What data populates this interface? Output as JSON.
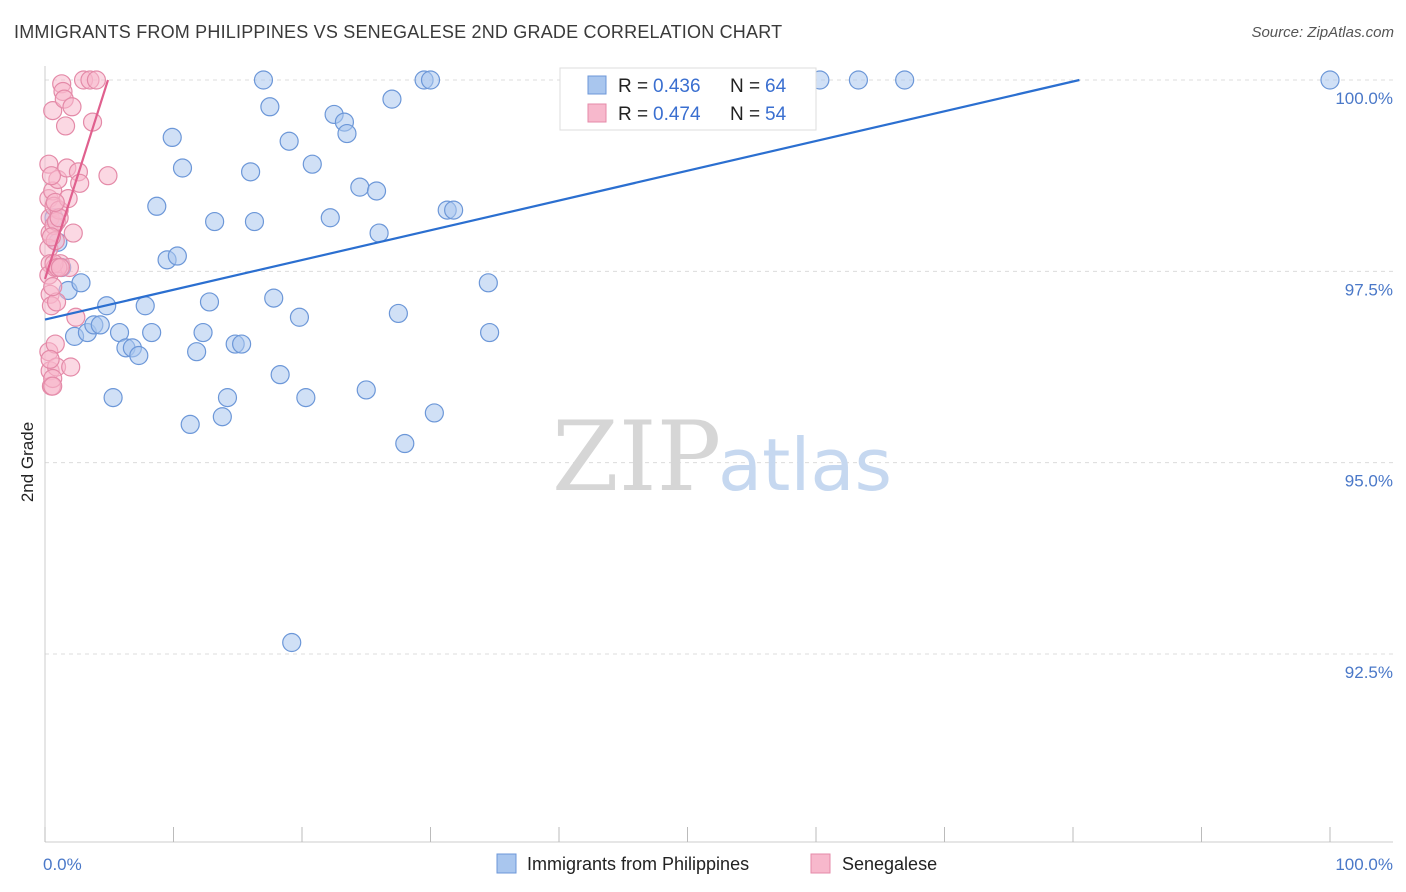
{
  "header": {
    "title": "IMMIGRANTS FROM PHILIPPINES VS SENEGALESE 2ND GRADE CORRELATION CHART",
    "source": "Source: ZipAtlas.com"
  },
  "watermark": {
    "zip": "ZIP",
    "atlas": "atlas"
  },
  "legend": {
    "r_label": "R =",
    "n_label": "N =",
    "rows": [
      {
        "r": "0.436",
        "n": "64",
        "color": "#a9c6ee",
        "stroke": "#6c97d8"
      },
      {
        "r": "0.474",
        "n": "54",
        "color": "#f7b8cc",
        "stroke": "#e48aa8"
      }
    ]
  },
  "bottom_legend": [
    {
      "label": "Immigrants from Philippines",
      "color": "#a9c6ee",
      "stroke": "#6c97d8"
    },
    {
      "label": "Senegalese",
      "color": "#f7b8cc",
      "stroke": "#e48aa8"
    }
  ],
  "chart_data": {
    "type": "scatter",
    "ylabel": "2nd Grade",
    "xlim": [
      0,
      100
    ],
    "ylim": [
      90.5,
      100.4
    ],
    "y_ticks": [
      {
        "value": 100.0,
        "label": "100.0%"
      },
      {
        "value": 97.5,
        "label": "97.5%"
      },
      {
        "value": 95.0,
        "label": "95.0%"
      },
      {
        "value": 92.5,
        "label": "92.5%"
      }
    ],
    "x_tick_labels": [
      {
        "value": 0,
        "label": "0.0%"
      },
      {
        "value": 100,
        "label": "100.0%"
      }
    ],
    "x_minor_ticks": [
      0,
      10,
      20,
      30,
      40,
      50,
      60,
      70,
      80,
      90,
      100
    ],
    "grid": true,
    "series": [
      {
        "name": "Immigrants from Philippines",
        "color": "#a9c6ee",
        "stroke": "#6c97d8",
        "line_color": "#2b6fd0",
        "trend": {
          "x": [
            0,
            80.5
          ],
          "y": [
            96.87,
            100.0
          ]
        },
        "points": [
          {
            "x": 1.0,
            "y": 97.88
          },
          {
            "x": 1.3,
            "y": 97.55
          },
          {
            "x": 1.8,
            "y": 97.25
          },
          {
            "x": 2.3,
            "y": 96.65
          },
          {
            "x": 2.8,
            "y": 97.35
          },
          {
            "x": 3.3,
            "y": 96.7
          },
          {
            "x": 3.8,
            "y": 96.8
          },
          {
            "x": 4.3,
            "y": 96.8
          },
          {
            "x": 4.8,
            "y": 97.05
          },
          {
            "x": 5.3,
            "y": 95.85
          },
          {
            "x": 5.8,
            "y": 96.7
          },
          {
            "x": 6.3,
            "y": 96.5
          },
          {
            "x": 6.8,
            "y": 96.5
          },
          {
            "x": 7.3,
            "y": 96.4
          },
          {
            "x": 7.8,
            "y": 97.05
          },
          {
            "x": 8.3,
            "y": 96.7
          },
          {
            "x": 8.7,
            "y": 98.35
          },
          {
            "x": 9.5,
            "y": 97.65
          },
          {
            "x": 9.9,
            "y": 99.25
          },
          {
            "x": 10.3,
            "y": 97.7
          },
          {
            "x": 10.7,
            "y": 98.85
          },
          {
            "x": 11.3,
            "y": 95.5
          },
          {
            "x": 11.8,
            "y": 96.45
          },
          {
            "x": 12.3,
            "y": 96.7
          },
          {
            "x": 12.8,
            "y": 97.1
          },
          {
            "x": 13.2,
            "y": 98.15
          },
          {
            "x": 13.8,
            "y": 95.6
          },
          {
            "x": 14.2,
            "y": 95.85
          },
          {
            "x": 14.8,
            "y": 96.55
          },
          {
            "x": 15.3,
            "y": 96.55
          },
          {
            "x": 16.0,
            "y": 98.8
          },
          {
            "x": 16.3,
            "y": 98.15
          },
          {
            "x": 17.0,
            "y": 100.0
          },
          {
            "x": 17.5,
            "y": 99.65
          },
          {
            "x": 17.8,
            "y": 97.15
          },
          {
            "x": 18.3,
            "y": 96.15
          },
          {
            "x": 19.0,
            "y": 99.2
          },
          {
            "x": 19.2,
            "y": 92.65
          },
          {
            "x": 19.8,
            "y": 96.9
          },
          {
            "x": 20.3,
            "y": 95.85
          },
          {
            "x": 20.8,
            "y": 98.9
          },
          {
            "x": 22.2,
            "y": 98.2
          },
          {
            "x": 22.5,
            "y": 99.55
          },
          {
            "x": 23.3,
            "y": 99.45
          },
          {
            "x": 23.5,
            "y": 99.3
          },
          {
            "x": 24.5,
            "y": 98.6
          },
          {
            "x": 25.0,
            "y": 95.95
          },
          {
            "x": 25.8,
            "y": 98.55
          },
          {
            "x": 26.0,
            "y": 98.0
          },
          {
            "x": 27.0,
            "y": 99.75
          },
          {
            "x": 27.5,
            "y": 96.95
          },
          {
            "x": 28.0,
            "y": 95.25
          },
          {
            "x": 29.5,
            "y": 100.0
          },
          {
            "x": 30.0,
            "y": 100.0
          },
          {
            "x": 30.3,
            "y": 95.65
          },
          {
            "x": 31.3,
            "y": 98.3
          },
          {
            "x": 31.8,
            "y": 98.3
          },
          {
            "x": 34.5,
            "y": 97.35
          },
          {
            "x": 34.6,
            "y": 96.7
          },
          {
            "x": 60.3,
            "y": 100.0
          },
          {
            "x": 63.3,
            "y": 100.0
          },
          {
            "x": 66.9,
            "y": 100.0
          },
          {
            "x": 100.0,
            "y": 100.0
          },
          {
            "x": 0.7,
            "y": 98.2
          }
        ]
      },
      {
        "name": "Senegalese",
        "color": "#f7b8cc",
        "stroke": "#e48aa8",
        "line_color": "#e0608e",
        "trend": {
          "x": [
            0,
            4.9
          ],
          "y": [
            97.4,
            100.0
          ]
        },
        "points": [
          {
            "x": 0.3,
            "y": 98.9
          },
          {
            "x": 0.3,
            "y": 98.45
          },
          {
            "x": 0.4,
            "y": 98.2
          },
          {
            "x": 0.4,
            "y": 98.0
          },
          {
            "x": 0.3,
            "y": 97.8
          },
          {
            "x": 0.4,
            "y": 97.6
          },
          {
            "x": 0.3,
            "y": 97.45
          },
          {
            "x": 0.4,
            "y": 97.2
          },
          {
            "x": 0.5,
            "y": 97.05
          },
          {
            "x": 0.3,
            "y": 96.45
          },
          {
            "x": 0.4,
            "y": 96.2
          },
          {
            "x": 0.5,
            "y": 96.0
          },
          {
            "x": 0.6,
            "y": 99.6
          },
          {
            "x": 0.6,
            "y": 98.55
          },
          {
            "x": 0.7,
            "y": 98.35
          },
          {
            "x": 0.7,
            "y": 98.1
          },
          {
            "x": 0.8,
            "y": 97.9
          },
          {
            "x": 0.8,
            "y": 97.55
          },
          {
            "x": 0.9,
            "y": 97.1
          },
          {
            "x": 0.8,
            "y": 96.55
          },
          {
            "x": 0.9,
            "y": 96.25
          },
          {
            "x": 0.6,
            "y": 96.1
          },
          {
            "x": 1.0,
            "y": 98.7
          },
          {
            "x": 1.1,
            "y": 98.3
          },
          {
            "x": 1.2,
            "y": 97.6
          },
          {
            "x": 1.3,
            "y": 99.95
          },
          {
            "x": 1.4,
            "y": 99.85
          },
          {
            "x": 1.5,
            "y": 99.75
          },
          {
            "x": 1.6,
            "y": 99.4
          },
          {
            "x": 1.7,
            "y": 98.85
          },
          {
            "x": 1.8,
            "y": 98.45
          },
          {
            "x": 1.9,
            "y": 97.55
          },
          {
            "x": 2.0,
            "y": 96.25
          },
          {
            "x": 2.1,
            "y": 99.65
          },
          {
            "x": 2.2,
            "y": 98.0
          },
          {
            "x": 2.4,
            "y": 96.9
          },
          {
            "x": 2.6,
            "y": 98.8
          },
          {
            "x": 2.7,
            "y": 98.65
          },
          {
            "x": 3.0,
            "y": 100.0
          },
          {
            "x": 3.5,
            "y": 100.0
          },
          {
            "x": 3.7,
            "y": 99.45
          },
          {
            "x": 4.0,
            "y": 100.0
          },
          {
            "x": 4.9,
            "y": 98.75
          },
          {
            "x": 0.5,
            "y": 98.75
          },
          {
            "x": 0.6,
            "y": 97.3
          },
          {
            "x": 0.7,
            "y": 97.6
          },
          {
            "x": 0.9,
            "y": 98.15
          },
          {
            "x": 1.0,
            "y": 97.55
          },
          {
            "x": 1.1,
            "y": 98.2
          },
          {
            "x": 0.4,
            "y": 96.35
          },
          {
            "x": 0.5,
            "y": 97.95
          },
          {
            "x": 0.6,
            "y": 96.0
          },
          {
            "x": 0.8,
            "y": 98.4
          },
          {
            "x": 1.2,
            "y": 97.55
          }
        ]
      }
    ]
  }
}
